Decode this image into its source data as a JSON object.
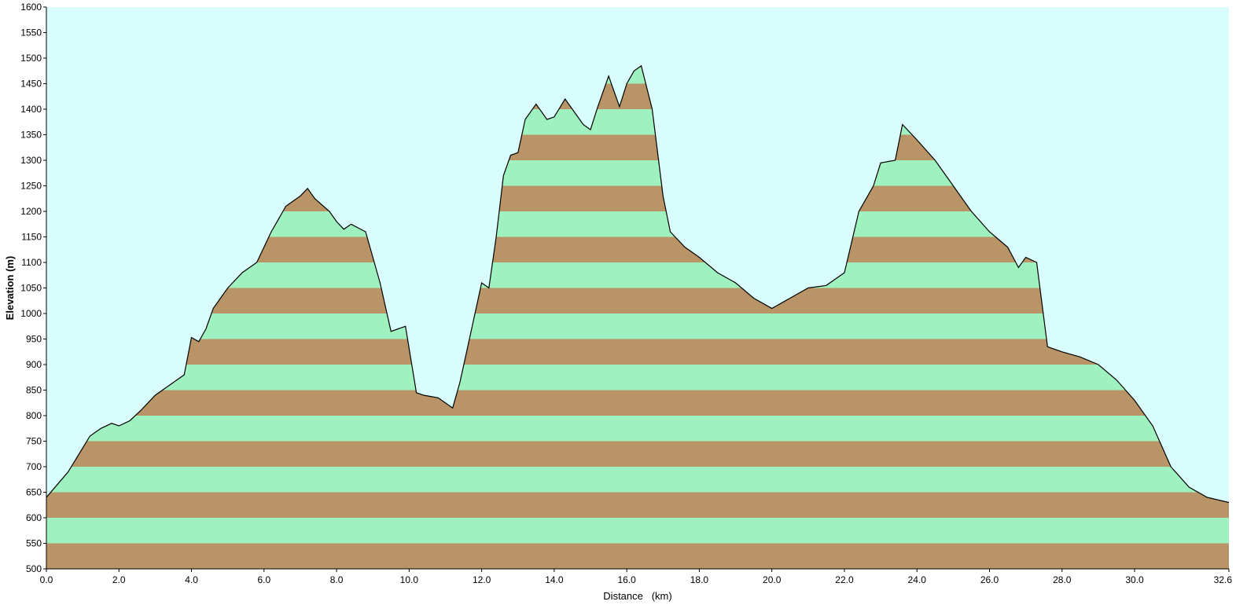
{
  "chart_data": {
    "type": "area",
    "title": "",
    "xlabel": "Distance   (km)",
    "ylabel": "Elevation (m)",
    "xlim": [
      0,
      32.6
    ],
    "ylim": [
      500,
      1600
    ],
    "x_ticks": [
      0,
      2,
      4,
      6,
      8,
      10,
      12,
      14,
      16,
      18,
      20,
      22,
      24,
      26,
      28,
      30,
      32.6
    ],
    "x_tick_labels": [
      "0.0",
      "2.0",
      "4.0",
      "6.0",
      "8.0",
      "10.0",
      "12.0",
      "14.0",
      "16.0",
      "18.0",
      "20.0",
      "22.0",
      "24.0",
      "26.0",
      "28.0",
      "30.0",
      "32.6"
    ],
    "y_ticks": [
      500,
      550,
      600,
      650,
      700,
      750,
      800,
      850,
      900,
      950,
      1000,
      1050,
      1100,
      1150,
      1200,
      1250,
      1300,
      1350,
      1400,
      1450,
      1500,
      1550,
      1600
    ],
    "band_interval": 50,
    "grid": false,
    "colors": {
      "sky": "#d9fdfc",
      "band_dark": "#b89467",
      "band_light": "#9ff2c0",
      "outline": "#000000"
    },
    "x": [
      0.0,
      0.3,
      0.6,
      0.9,
      1.2,
      1.5,
      1.8,
      2.0,
      2.3,
      2.6,
      3.0,
      3.4,
      3.8,
      4.0,
      4.2,
      4.4,
      4.6,
      5.0,
      5.4,
      5.8,
      6.2,
      6.4,
      6.6,
      7.0,
      7.2,
      7.4,
      7.8,
      8.0,
      8.2,
      8.4,
      8.8,
      9.2,
      9.5,
      9.7,
      9.9,
      10.2,
      10.4,
      10.8,
      11.2,
      11.4,
      11.6,
      12.0,
      12.2,
      12.4,
      12.6,
      12.8,
      13.0,
      13.2,
      13.5,
      13.8,
      14.0,
      14.3,
      14.6,
      14.8,
      15.0,
      15.2,
      15.5,
      15.8,
      16.0,
      16.2,
      16.4,
      16.7,
      17.0,
      17.2,
      17.6,
      18.0,
      18.5,
      19.0,
      19.5,
      20.0,
      20.5,
      21.0,
      21.5,
      22.0,
      22.4,
      22.8,
      23.0,
      23.4,
      23.6,
      24.0,
      24.5,
      25.0,
      25.5,
      26.0,
      26.5,
      26.8,
      27.0,
      27.3,
      27.6,
      28.0,
      28.5,
      29.0,
      29.5,
      30.0,
      30.5,
      31.0,
      31.5,
      32.0,
      32.6
    ],
    "y": [
      640,
      665,
      690,
      725,
      760,
      775,
      785,
      780,
      790,
      810,
      840,
      860,
      880,
      953,
      945,
      970,
      1010,
      1050,
      1080,
      1100,
      1160,
      1185,
      1210,
      1230,
      1245,
      1225,
      1200,
      1180,
      1165,
      1175,
      1160,
      1060,
      965,
      970,
      975,
      845,
      840,
      835,
      815,
      865,
      930,
      1060,
      1050,
      1150,
      1270,
      1310,
      1315,
      1380,
      1410,
      1380,
      1385,
      1420,
      1390,
      1370,
      1360,
      1405,
      1465,
      1405,
      1450,
      1475,
      1485,
      1400,
      1230,
      1160,
      1130,
      1110,
      1080,
      1060,
      1030,
      1010,
      1030,
      1050,
      1055,
      1080,
      1200,
      1250,
      1295,
      1300,
      1370,
      1340,
      1300,
      1250,
      1200,
      1160,
      1130,
      1090,
      1110,
      1100,
      935,
      925,
      915,
      900,
      870,
      830,
      780,
      700,
      660,
      640,
      630
    ]
  }
}
